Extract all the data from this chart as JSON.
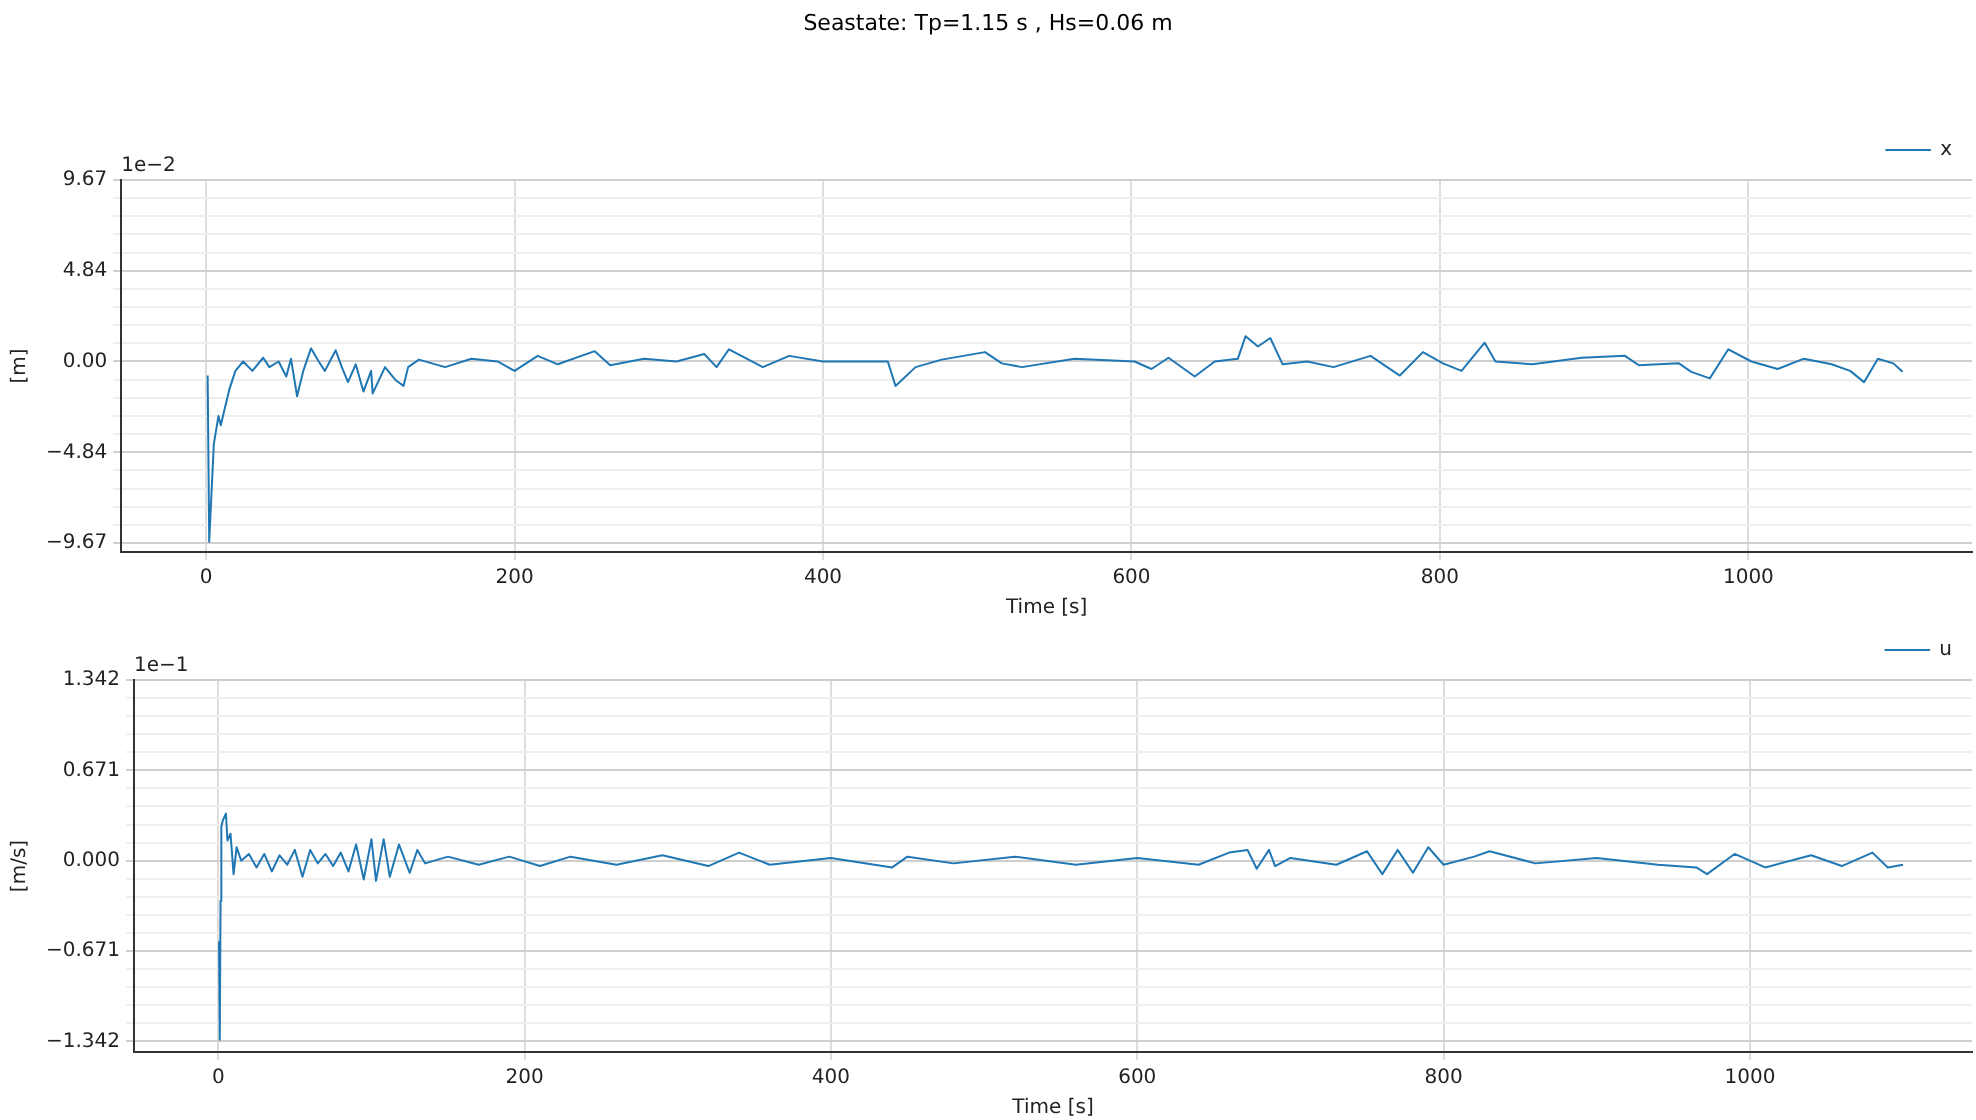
{
  "chart_data": [
    {
      "type": "line",
      "title": "Seastate: Tp=1.15 s , Hs=0.06 m",
      "xlabel": "Time [s]",
      "ylabel": "[m]",
      "annotations": [
        "1e−2"
      ],
      "xlim": [
        -55,
        1145
      ],
      "xticks": [
        0,
        200,
        400,
        600,
        800,
        1000
      ],
      "ylim": [
        -10.15,
        9.67
      ],
      "yticks": [
        {
          "value": -9.67,
          "label": "−9.67"
        },
        {
          "value": -8.703,
          "label": null
        },
        {
          "value": -7.736,
          "label": null
        },
        {
          "value": -6.769,
          "label": null
        },
        {
          "value": -5.802,
          "label": null
        },
        {
          "value": -4.84,
          "label": "−4.84"
        },
        {
          "value": -3.868,
          "label": null
        },
        {
          "value": -2.901,
          "label": null
        },
        {
          "value": -1.934,
          "label": null
        },
        {
          "value": -0.967,
          "label": null
        },
        {
          "value": 0,
          "label": "0.00"
        },
        {
          "value": 0.967,
          "label": null
        },
        {
          "value": 1.934,
          "label": null
        },
        {
          "value": 2.901,
          "label": null
        },
        {
          "value": 3.868,
          "label": null
        },
        4.84,
        {
          "value": 5.802,
          "label": null
        },
        {
          "value": 6.769,
          "label": null
        },
        {
          "value": 7.736,
          "label": null
        },
        {
          "value": 8.703,
          "label": null
        },
        9.67
      ],
      "grid": true,
      "legend": "top right",
      "marker": "none",
      "line_style": "solid",
      "x": [
        1,
        2,
        5,
        8,
        9.5,
        15,
        19,
        24,
        30,
        37,
        41,
        47,
        52,
        55,
        59,
        63,
        68,
        73,
        77,
        84,
        88,
        92,
        97,
        102,
        107,
        108,
        116,
        123,
        128,
        131,
        138,
        155,
        172,
        189,
        200,
        215,
        228,
        252,
        262,
        284,
        305,
        323,
        331,
        339,
        361,
        378,
        400,
        430,
        442,
        447,
        460,
        477,
        505,
        516,
        529,
        563,
        602,
        613,
        624,
        641,
        654,
        669,
        674,
        682,
        690,
        698,
        714,
        731,
        755,
        774,
        789,
        802,
        814,
        829,
        836,
        860,
        892,
        920,
        929,
        955,
        963,
        975,
        987,
        1002,
        1019,
        1036,
        1054,
        1066,
        1075,
        1084,
        1094,
        1100
      ],
      "series": [
        {
          "name": "x",
          "color": "#1f77b4",
          "values": [
            -0.75,
            -9.6,
            -4.4,
            -2.9,
            -3.4,
            -1.5,
            -0.5,
            0,
            -0.5,
            0.2,
            -0.3,
            0,
            -0.8,
            0.15,
            -1.85,
            -0.5,
            0.7,
            0,
            -0.5,
            0.6,
            -0.3,
            -1.1,
            -0.15,
            -1.6,
            -0.5,
            -1.7,
            -0.3,
            -1,
            -1.3,
            -0.3,
            0.1,
            -0.3,
            0.15,
            0,
            -0.5,
            0.3,
            -0.15,
            0.55,
            -0.2,
            0.15,
            0,
            0.4,
            -0.3,
            0.65,
            -0.3,
            0.3,
            0,
            0,
            0,
            -1.3,
            -0.3,
            0.1,
            0.5,
            -0.1,
            -0.3,
            0.15,
            0,
            -0.4,
            0.2,
            -0.8,
            0,
            0.15,
            1.35,
            0.8,
            1.25,
            -0.15,
            0,
            -0.3,
            0.3,
            -0.75,
            0.5,
            -0.1,
            -0.5,
            1,
            0,
            -0.15,
            0.2,
            0.3,
            -0.2,
            -0.1,
            -0.55,
            -0.9,
            0.65,
            0,
            -0.4,
            0.15,
            -0.15,
            -0.5,
            -1.1,
            0.15,
            -0.1,
            -0.55
          ]
        }
      ]
    },
    {
      "type": "line",
      "xlabel": "Time [s]",
      "ylabel": "[m/s]",
      "annotations": [
        "1e−1"
      ],
      "xlim": [
        -55,
        1145
      ],
      "xticks": [
        0,
        200,
        400,
        600,
        800,
        1000
      ],
      "ylim": [
        -1.421,
        1.342
      ],
      "yticks": [
        {
          "value": -1.342,
          "label": "−1.342"
        },
        {
          "value": -1.2078,
          "label": null
        },
        {
          "value": -1.0736,
          "label": null
        },
        {
          "value": -0.9394,
          "label": null
        },
        {
          "value": -0.8052,
          "label": null
        },
        {
          "value": -0.671,
          "label": "−0.671"
        },
        {
          "value": -0.5368,
          "label": null
        },
        {
          "value": -0.4026,
          "label": null
        },
        {
          "value": -0.2684,
          "label": null
        },
        {
          "value": -0.1342,
          "label": null
        },
        {
          "value": 0,
          "label": "0.000"
        },
        {
          "value": 0.1342,
          "label": null
        },
        {
          "value": 0.2684,
          "label": null
        },
        {
          "value": 0.4026,
          "label": null
        },
        {
          "value": 0.5368,
          "label": null
        },
        0.671,
        {
          "value": 0.8052,
          "label": null
        },
        {
          "value": 0.9394,
          "label": null
        },
        {
          "value": 1.0736,
          "label": null
        },
        {
          "value": 1.2078,
          "label": null
        },
        1.342
      ],
      "grid": true,
      "legend": "top right",
      "marker": "none",
      "line_style": "solid",
      "x": [
        0.5,
        1,
        1.5,
        2,
        3,
        5,
        6,
        8,
        10,
        12,
        15,
        20,
        25,
        30,
        35,
        40,
        45,
        50,
        55,
        60,
        65,
        70,
        75,
        80,
        85,
        90,
        95,
        100,
        103,
        108,
        112,
        118,
        125,
        130,
        135,
        150,
        170,
        190,
        210,
        230,
        260,
        290,
        320,
        340,
        360,
        400,
        440,
        450,
        480,
        520,
        560,
        600,
        640,
        660,
        672,
        678,
        686,
        690,
        700,
        730,
        750,
        760,
        770,
        780,
        790,
        800,
        820,
        830,
        860,
        900,
        940,
        965,
        972,
        990,
        1010,
        1040,
        1060,
        1080,
        1090,
        1100
      ],
      "series": [
        {
          "name": "u",
          "color": "#1f77b4",
          "values": [
            -0.6,
            -1.33,
            -0.3,
            0.25,
            0.3,
            0.35,
            0.15,
            0.2,
            -0.1,
            0.1,
            0,
            0.05,
            -0.05,
            0.05,
            -0.08,
            0.04,
            -0.03,
            0.08,
            -0.12,
            0.08,
            -0.02,
            0.05,
            -0.04,
            0.06,
            -0.08,
            0.12,
            -0.14,
            0.16,
            -0.15,
            0.16,
            -0.12,
            0.12,
            -0.09,
            0.08,
            -0.02,
            0.03,
            -0.03,
            0.03,
            -0.04,
            0.03,
            -0.03,
            0.04,
            -0.04,
            0.06,
            -0.03,
            0.02,
            -0.05,
            0.03,
            -0.02,
            0.03,
            -0.03,
            0.02,
            -0.03,
            0.06,
            0.08,
            -0.06,
            0.08,
            -0.04,
            0.02,
            -0.03,
            0.07,
            -0.1,
            0.08,
            -0.09,
            0.1,
            -0.03,
            0.03,
            0.07,
            -0.02,
            0.02,
            -0.03,
            -0.05,
            -0.1,
            0.05,
            -0.05,
            0.04,
            -0.04,
            0.06,
            -0.05,
            -0.03
          ]
        }
      ]
    }
  ]
}
